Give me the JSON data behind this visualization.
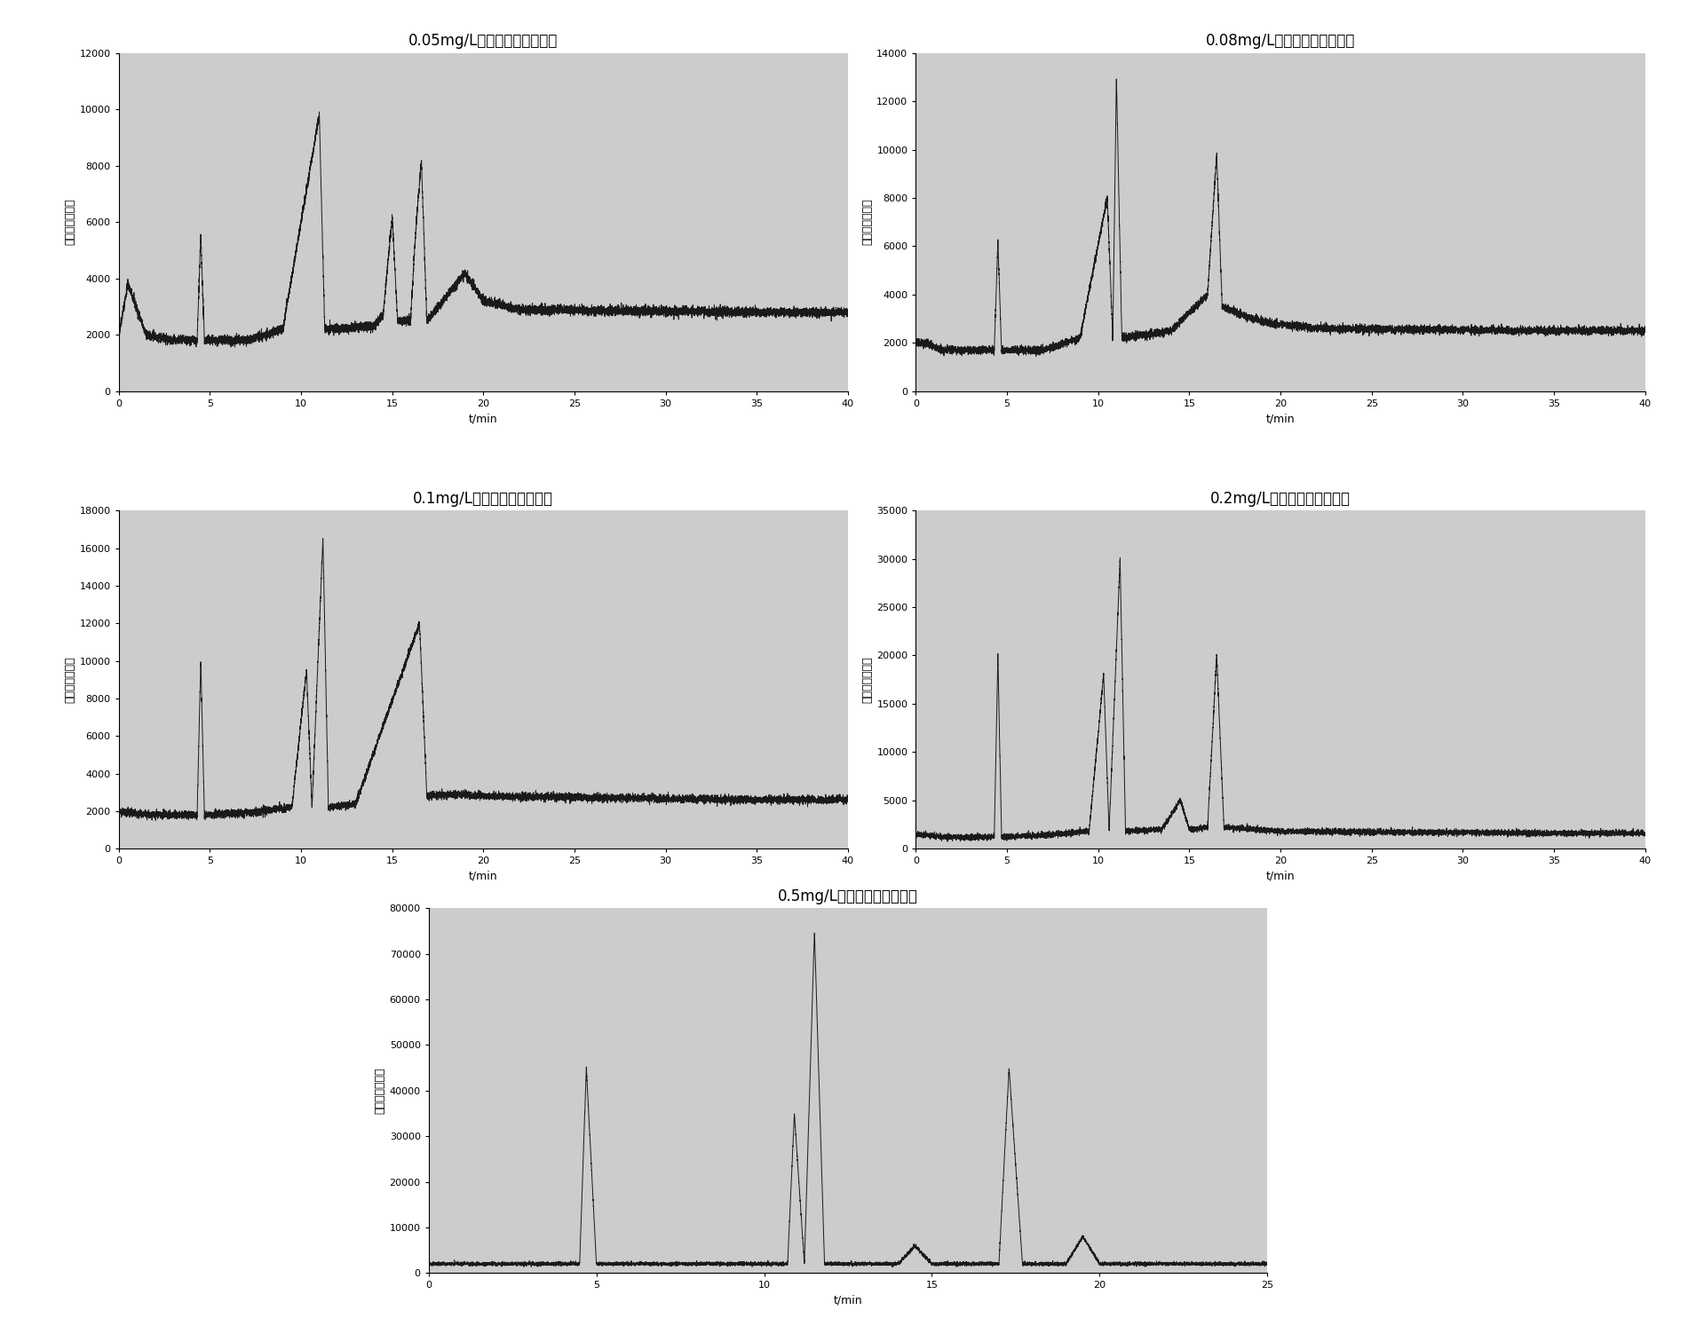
{
  "plots": [
    {
      "title": "0.05mg/L混标的提取离子流图",
      "ylabel": "离子电流总强度",
      "xlabel": "t/min",
      "xlim": [
        0,
        40
      ],
      "ylim": [
        0,
        12000
      ],
      "yticks": [
        0,
        2000,
        4000,
        6000,
        8000,
        10000,
        12000
      ],
      "xticks": [
        0,
        5,
        10,
        15,
        20,
        25,
        30,
        35,
        40
      ],
      "baseline": 2000,
      "noise_level": 80,
      "segments": [
        {
          "t": 0.0,
          "v": 2000
        },
        {
          "t": 0.5,
          "v": 3800
        },
        {
          "t": 1.5,
          "v": 2000
        },
        {
          "t": 3.0,
          "v": 1800
        },
        {
          "t": 4.3,
          "v": 1800
        },
        {
          "t": 4.5,
          "v": 5500
        },
        {
          "t": 4.7,
          "v": 1800
        },
        {
          "t": 7.0,
          "v": 1800
        },
        {
          "t": 9.0,
          "v": 2200
        },
        {
          "t": 11.0,
          "v": 9800
        },
        {
          "t": 11.3,
          "v": 2200
        },
        {
          "t": 14.0,
          "v": 2300
        },
        {
          "t": 14.5,
          "v": 2700
        },
        {
          "t": 15.0,
          "v": 6200
        },
        {
          "t": 15.3,
          "v": 2500
        },
        {
          "t": 16.0,
          "v": 2500
        },
        {
          "t": 16.3,
          "v": 5800
        },
        {
          "t": 16.6,
          "v": 8200
        },
        {
          "t": 16.9,
          "v": 2500
        },
        {
          "t": 19.0,
          "v": 4200
        },
        {
          "t": 20.0,
          "v": 3200
        },
        {
          "t": 22.0,
          "v": 2900
        },
        {
          "t": 35.0,
          "v": 2800
        },
        {
          "t": 40.0,
          "v": 2800
        }
      ]
    },
    {
      "title": "0.08mg/L混标的提取离子流图",
      "ylabel": "离子电流总强度",
      "xlabel": "t/min",
      "xlim": [
        0,
        40
      ],
      "ylim": [
        0,
        14000
      ],
      "yticks": [
        0,
        2000,
        4000,
        6000,
        8000,
        10000,
        12000,
        14000
      ],
      "xticks": [
        0,
        5,
        10,
        15,
        20,
        25,
        30,
        35,
        40
      ],
      "baseline": 2000,
      "noise_level": 80,
      "segments": [
        {
          "t": 0.0,
          "v": 2000
        },
        {
          "t": 0.5,
          "v": 2000
        },
        {
          "t": 1.5,
          "v": 1700
        },
        {
          "t": 3.5,
          "v": 1700
        },
        {
          "t": 4.3,
          "v": 1700
        },
        {
          "t": 4.5,
          "v": 6200
        },
        {
          "t": 4.7,
          "v": 1700
        },
        {
          "t": 7.0,
          "v": 1700
        },
        {
          "t": 9.0,
          "v": 2200
        },
        {
          "t": 10.5,
          "v": 8000
        },
        {
          "t": 10.8,
          "v": 2200
        },
        {
          "t": 11.0,
          "v": 13000
        },
        {
          "t": 11.3,
          "v": 2200
        },
        {
          "t": 14.0,
          "v": 2500
        },
        {
          "t": 16.0,
          "v": 4000
        },
        {
          "t": 16.5,
          "v": 9800
        },
        {
          "t": 16.8,
          "v": 3500
        },
        {
          "t": 18.5,
          "v": 3000
        },
        {
          "t": 19.5,
          "v": 2800
        },
        {
          "t": 22.0,
          "v": 2600
        },
        {
          "t": 35.0,
          "v": 2500
        },
        {
          "t": 40.0,
          "v": 2500
        }
      ]
    },
    {
      "title": "0.1mg/L混标的提取离子流图",
      "ylabel": "离子电流总强度",
      "xlabel": "t/min",
      "xlim": [
        0,
        40
      ],
      "ylim": [
        0,
        18000
      ],
      "yticks": [
        0,
        2000,
        4000,
        6000,
        8000,
        10000,
        12000,
        14000,
        16000,
        18000
      ],
      "xticks": [
        0,
        5,
        10,
        15,
        20,
        25,
        30,
        35,
        40
      ],
      "baseline": 2000,
      "noise_level": 100,
      "segments": [
        {
          "t": 0.0,
          "v": 2000
        },
        {
          "t": 1.5,
          "v": 1800
        },
        {
          "t": 3.5,
          "v": 1800
        },
        {
          "t": 4.3,
          "v": 1800
        },
        {
          "t": 4.5,
          "v": 10000
        },
        {
          "t": 4.7,
          "v": 1800
        },
        {
          "t": 7.0,
          "v": 1900
        },
        {
          "t": 9.5,
          "v": 2200
        },
        {
          "t": 10.3,
          "v": 9500
        },
        {
          "t": 10.6,
          "v": 2200
        },
        {
          "t": 11.2,
          "v": 16500
        },
        {
          "t": 11.5,
          "v": 2200
        },
        {
          "t": 13.0,
          "v": 2400
        },
        {
          "t": 16.5,
          "v": 12000
        },
        {
          "t": 16.9,
          "v": 2800
        },
        {
          "t": 18.5,
          "v": 2900
        },
        {
          "t": 20.0,
          "v": 2800
        },
        {
          "t": 35.0,
          "v": 2600
        },
        {
          "t": 40.0,
          "v": 2600
        }
      ]
    },
    {
      "title": "0.2mg/L混标的提取离子流图",
      "ylabel": "离子电流总强度",
      "xlabel": "t/min",
      "xlim": [
        0,
        40
      ],
      "ylim": [
        0,
        35000
      ],
      "yticks": [
        0,
        5000,
        10000,
        15000,
        20000,
        25000,
        30000,
        35000
      ],
      "xticks": [
        0,
        5,
        10,
        15,
        20,
        25,
        30,
        35,
        40
      ],
      "baseline": 1500,
      "noise_level": 150,
      "segments": [
        {
          "t": 0.0,
          "v": 1500
        },
        {
          "t": 1.5,
          "v": 1200
        },
        {
          "t": 3.5,
          "v": 1200
        },
        {
          "t": 4.3,
          "v": 1200
        },
        {
          "t": 4.5,
          "v": 20000
        },
        {
          "t": 4.7,
          "v": 1200
        },
        {
          "t": 7.0,
          "v": 1400
        },
        {
          "t": 9.5,
          "v": 1800
        },
        {
          "t": 10.3,
          "v": 18000
        },
        {
          "t": 10.6,
          "v": 1800
        },
        {
          "t": 11.2,
          "v": 30000
        },
        {
          "t": 11.5,
          "v": 1800
        },
        {
          "t": 13.5,
          "v": 2000
        },
        {
          "t": 14.5,
          "v": 5000
        },
        {
          "t": 15.0,
          "v": 2000
        },
        {
          "t": 16.0,
          "v": 2200
        },
        {
          "t": 16.5,
          "v": 20000
        },
        {
          "t": 16.9,
          "v": 2200
        },
        {
          "t": 18.5,
          "v": 2000
        },
        {
          "t": 20.0,
          "v": 1800
        },
        {
          "t": 35.0,
          "v": 1600
        },
        {
          "t": 40.0,
          "v": 1600
        }
      ]
    },
    {
      "title": "0.5mg/L混标的提取离子流图",
      "ylabel": "离子电流总强度",
      "xlabel": "t/min",
      "xlim": [
        0,
        25
      ],
      "ylim": [
        0,
        80000
      ],
      "yticks": [
        0,
        10000,
        20000,
        30000,
        40000,
        50000,
        60000,
        70000,
        80000
      ],
      "xticks": [
        0,
        5,
        10,
        15,
        20,
        25
      ],
      "baseline": 2000,
      "noise_level": 200,
      "segments": [
        {
          "t": 0.0,
          "v": 2000
        },
        {
          "t": 1.5,
          "v": 2000
        },
        {
          "t": 3.5,
          "v": 2000
        },
        {
          "t": 4.5,
          "v": 2000
        },
        {
          "t": 4.7,
          "v": 45000
        },
        {
          "t": 5.0,
          "v": 2000
        },
        {
          "t": 8.0,
          "v": 2000
        },
        {
          "t": 10.7,
          "v": 2000
        },
        {
          "t": 10.9,
          "v": 35000
        },
        {
          "t": 11.2,
          "v": 2000
        },
        {
          "t": 11.5,
          "v": 75000
        },
        {
          "t": 11.8,
          "v": 2000
        },
        {
          "t": 14.0,
          "v": 2000
        },
        {
          "t": 14.5,
          "v": 6000
        },
        {
          "t": 15.0,
          "v": 2000
        },
        {
          "t": 17.0,
          "v": 2000
        },
        {
          "t": 17.3,
          "v": 45000
        },
        {
          "t": 17.7,
          "v": 2000
        },
        {
          "t": 19.0,
          "v": 2000
        },
        {
          "t": 19.5,
          "v": 8000
        },
        {
          "t": 20.0,
          "v": 2000
        },
        {
          "t": 25.0,
          "v": 2000
        }
      ]
    }
  ],
  "line_color": "#1a1a1a",
  "bg_color": "#cccccc",
  "fig_bg": "#ffffff",
  "title_fontsize": 12,
  "axis_label_fontsize": 9,
  "tick_fontsize": 8
}
